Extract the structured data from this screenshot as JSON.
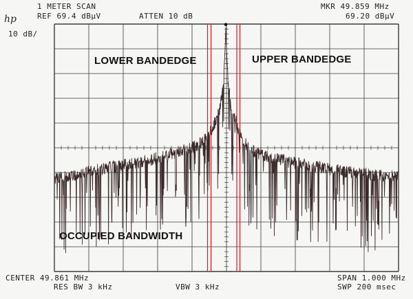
{
  "header": {
    "title": "1 METER SCAN",
    "ref": "REF 69.4 dBµV",
    "atten": "ATTEN 10 dB",
    "mkr_freq": "MKR 49.859 MHz",
    "mkr_level": "69.20 dBµV",
    "scale": "10 dB/",
    "logo": "hp"
  },
  "footer": {
    "center": "CENTER 49.861 MHz",
    "span": "SPAN 1.000 MHz",
    "res_bw": "RES BW 3 kHz",
    "vbw": "VBW 3 kHz",
    "sweep": "SWP 200 msec"
  },
  "annotations": {
    "lower": "LOWER BANDEDGE",
    "upper": "UPPER BANDEDGE",
    "obw": "OCCUPIED BANDWIDTH"
  },
  "colors": {
    "trace": "#3a2a2a",
    "grid": "#3a3a3a",
    "bandedge": "#d42020",
    "marker": "#000000"
  },
  "chart_data": {
    "type": "line",
    "title": "1 METER SCAN",
    "xlabel": "",
    "ylabel": "",
    "x_unit": "MHz",
    "y_unit": "dBµV",
    "center_mhz": 49.861,
    "span_mhz": 1.0,
    "xlim": [
      49.361,
      50.361
    ],
    "ylim": [
      -30.6,
      69.4
    ],
    "grid": true,
    "marker": {
      "x": 49.859,
      "y": 69.2
    },
    "lower_bandedge_mhz": [
      49.806,
      49.816
    ],
    "upper_bandedge_mhz": [
      49.891,
      49.9
    ],
    "series": [
      {
        "x": [
          49.361,
          49.411,
          49.461,
          49.511,
          49.561,
          49.611,
          49.661,
          49.711,
          49.761,
          49.781,
          49.801,
          49.811,
          49.821,
          49.831,
          49.841,
          49.848,
          49.853,
          49.856,
          49.858,
          49.859,
          49.86,
          49.862,
          49.865,
          49.87,
          49.877,
          49.887,
          49.897,
          49.907,
          49.927,
          49.947,
          49.997,
          50.047,
          50.097,
          50.147,
          50.197,
          50.247,
          50.297,
          50.361
        ],
        "values": [
          9.8,
          10.8,
          12.2,
          13.6,
          14.8,
          16.2,
          17.8,
          19.6,
          21.8,
          23.4,
          25.6,
          27.8,
          30.2,
          33.4,
          37.2,
          42.8,
          49.2,
          56.2,
          63.2,
          69.2,
          63.2,
          56.2,
          49.2,
          42.8,
          37.2,
          33.4,
          28.4,
          25.0,
          21.8,
          19.8,
          17.8,
          16.2,
          14.8,
          13.6,
          12.6,
          11.6,
          10.8,
          10.2
        ]
      }
    ]
  }
}
